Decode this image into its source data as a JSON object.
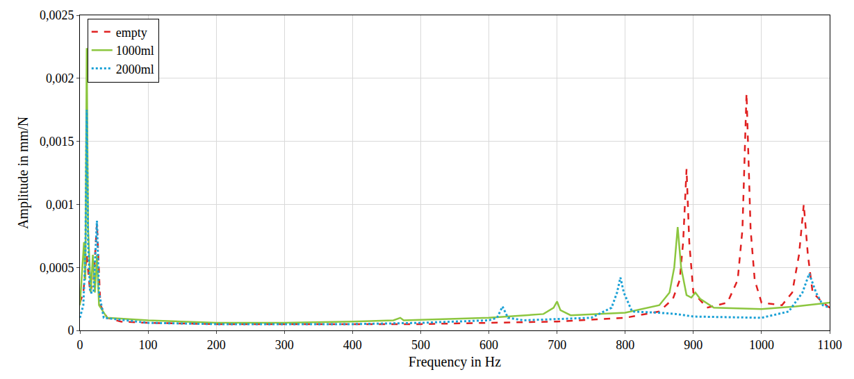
{
  "chart_data": {
    "type": "line",
    "x_label": "Frequency in Hz",
    "y_label": "Amplitude in mm/N",
    "xlim": [
      0,
      1100
    ],
    "xticks": [
      0,
      100,
      200,
      300,
      400,
      500,
      600,
      700,
      800,
      900,
      1000,
      1100
    ],
    "ylim": [
      0,
      0.0025
    ],
    "yticks": [
      0,
      {
        "value": 0.0005,
        "label": "0,0005"
      },
      {
        "value": 0.001,
        "label": "0,001"
      },
      {
        "value": 0.0015,
        "label": "0,0015"
      },
      {
        "value": 0.002,
        "label": "0,002"
      },
      {
        "value": 0.0025,
        "label": "0,0025"
      }
    ],
    "grid": true,
    "legend": "top-left",
    "series": [
      {
        "name": "empty",
        "color": "#e02020",
        "line_style": "dash",
        "x": [
          0,
          5,
          10,
          15,
          20,
          25,
          30,
          40,
          60,
          100,
          200,
          300,
          400,
          500,
          600,
          700,
          800,
          850,
          870,
          880,
          885,
          890,
          894,
          900,
          920,
          950,
          965,
          972,
          978,
          984,
          990,
          1000,
          1030,
          1045,
          1055,
          1062,
          1068,
          1075,
          1090,
          1100
        ],
        "values": [
          0.00022,
          0.0003,
          0.0006,
          0.0003,
          0.0004,
          0.00085,
          0.0002,
          0.0001,
          7e-05,
          6e-05,
          5e-05,
          5e-05,
          5e-05,
          5e-05,
          6e-05,
          7e-05,
          0.0001,
          0.00015,
          0.00025,
          0.0004,
          0.0007,
          0.00128,
          0.0007,
          0.0003,
          0.00018,
          0.00022,
          0.0004,
          0.0008,
          0.00188,
          0.0008,
          0.0004,
          0.00022,
          0.0002,
          0.0003,
          0.0006,
          0.001,
          0.0006,
          0.0003,
          0.00022,
          0.00018
        ]
      },
      {
        "name": "1000ml",
        "color": "#8cc63f",
        "line_style": "solid",
        "x": [
          0,
          4,
          6,
          8,
          10,
          12,
          16,
          19,
          22,
          25,
          28,
          40,
          100,
          200,
          300,
          400,
          460,
          470,
          475,
          600,
          680,
          695,
          700,
          705,
          720,
          800,
          850,
          865,
          872,
          877,
          882,
          890,
          897,
          903,
          910,
          930,
          1000,
          1050,
          1100
        ],
        "values": [
          0.0002,
          0.0005,
          0.0007,
          0.0004,
          0.00224,
          0.0008,
          0.0003,
          0.0006,
          0.0003,
          0.0006,
          0.0002,
          0.0001,
          8e-05,
          6e-05,
          6e-05,
          7e-05,
          8e-05,
          0.0001,
          8e-05,
          0.0001,
          0.00013,
          0.00018,
          0.00023,
          0.00016,
          0.00012,
          0.00014,
          0.0002,
          0.0003,
          0.0005,
          0.00082,
          0.0005,
          0.00028,
          0.00026,
          0.0003,
          0.00025,
          0.00018,
          0.00017,
          0.00019,
          0.00022
        ]
      },
      {
        "name": "2000ml",
        "color": "#1ba1d6",
        "line_style": "dot",
        "x": [
          0,
          5,
          8,
          10,
          12,
          15,
          20,
          25,
          28,
          35,
          100,
          200,
          300,
          400,
          500,
          600,
          612,
          620,
          628,
          650,
          750,
          780,
          788,
          793,
          798,
          810,
          850,
          875,
          900,
          1000,
          1040,
          1060,
          1070,
          1080,
          1090,
          1100
        ],
        "values": [
          0.0001,
          0.0002,
          0.0006,
          0.00175,
          0.0007,
          0.0003,
          0.0003,
          0.00087,
          0.0003,
          0.0001,
          6e-05,
          5e-05,
          5e-05,
          5e-05,
          6e-05,
          8e-05,
          0.0001,
          0.00019,
          0.0001,
          8e-05,
          0.0001,
          0.00018,
          0.0003,
          0.00042,
          0.0003,
          0.00015,
          0.00014,
          0.00013,
          0.00011,
          0.0001,
          0.00015,
          0.0003,
          0.00045,
          0.0003,
          0.0002,
          0.00018
        ]
      }
    ]
  }
}
